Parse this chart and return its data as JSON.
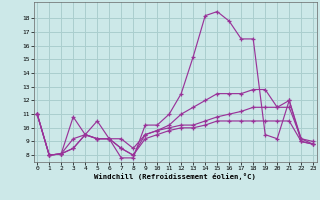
{
  "xlabel": "Windchill (Refroidissement éolien,°C)",
  "background_color": "#cce8e8",
  "grid_color": "#aacece",
  "line_color": "#993399",
  "x": [
    0,
    1,
    2,
    3,
    4,
    5,
    6,
    7,
    8,
    9,
    10,
    11,
    12,
    13,
    14,
    15,
    16,
    17,
    18,
    19,
    20,
    21,
    22,
    23
  ],
  "series": [
    [
      11.0,
      8.0,
      8.1,
      10.8,
      9.5,
      10.5,
      9.2,
      7.8,
      7.8,
      10.2,
      10.2,
      11.0,
      12.5,
      15.2,
      18.2,
      18.5,
      17.8,
      16.5,
      16.5,
      9.5,
      9.2,
      12.0,
      9.0,
      8.8
    ],
    [
      11.0,
      8.0,
      8.1,
      9.2,
      9.5,
      9.2,
      9.2,
      9.2,
      8.5,
      9.5,
      9.8,
      10.2,
      11.0,
      11.5,
      12.0,
      12.5,
      12.5,
      12.5,
      12.8,
      12.8,
      11.5,
      12.0,
      9.2,
      8.8
    ],
    [
      11.0,
      8.0,
      8.1,
      8.5,
      9.5,
      9.2,
      9.2,
      8.5,
      8.0,
      9.5,
      9.8,
      10.0,
      10.2,
      10.2,
      10.5,
      10.8,
      11.0,
      11.2,
      11.5,
      11.5,
      11.5,
      11.5,
      9.2,
      9.0
    ],
    [
      11.0,
      8.0,
      8.1,
      8.5,
      9.5,
      9.2,
      9.2,
      8.5,
      8.0,
      9.2,
      9.5,
      9.8,
      10.0,
      10.0,
      10.2,
      10.5,
      10.5,
      10.5,
      10.5,
      10.5,
      10.5,
      10.5,
      9.0,
      8.8
    ]
  ],
  "ylim": [
    7.5,
    19.2
  ],
  "xlim": [
    -0.3,
    23.3
  ],
  "yticks": [
    8,
    9,
    10,
    11,
    12,
    13,
    14,
    15,
    16,
    17,
    18
  ],
  "xticks": [
    0,
    1,
    2,
    3,
    4,
    5,
    6,
    7,
    8,
    9,
    10,
    11,
    12,
    13,
    14,
    15,
    16,
    17,
    18,
    19,
    20,
    21,
    22,
    23
  ]
}
